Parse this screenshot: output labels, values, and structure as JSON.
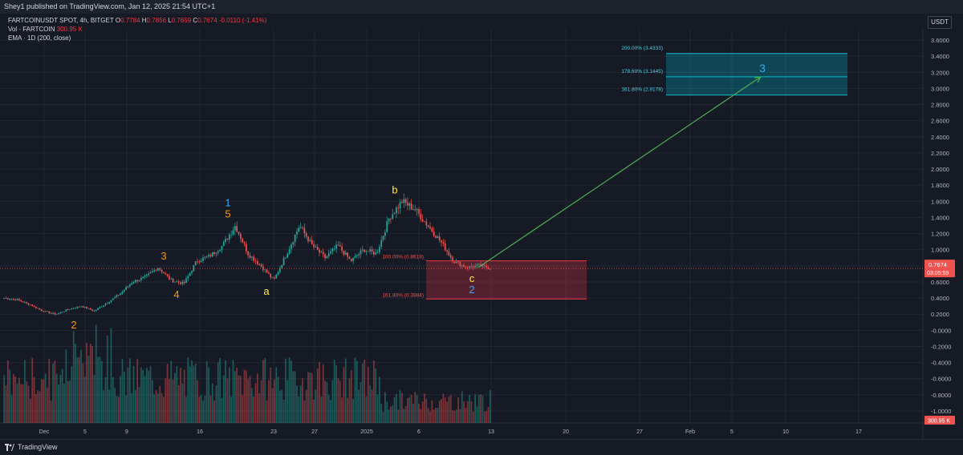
{
  "header": {
    "published": "Shey1 published on TradingView.com, Jan 12, 2025 21:54 UTC+1"
  },
  "legend": {
    "symbol": "FARTCOINUSDT SPOT, 4h, BITGET",
    "o_label": "O",
    "o_value": "0.7784",
    "h_label": "H",
    "h_value": "0.7856",
    "l_label": "L",
    "l_value": "0.7659",
    "c_label": "C",
    "c_value": "0.7674",
    "change": "-0.0110 (-1.41%)",
    "vol_label": "Vol · FARTCOIN",
    "vol_value": "300.95 K",
    "ema_label": "EMA · 1D (200, close)"
  },
  "currency_button": "USDT",
  "price_tag": {
    "price": "0.7674",
    "countdown": "03:05:59"
  },
  "volume_tag": "300.95 K",
  "footer": {
    "brand": "TradingView"
  },
  "colors": {
    "up": "#26a69a",
    "down": "#ef5350",
    "background": "#161a25",
    "target_zone": "#00bcd4",
    "retrace_zone": "#f23645",
    "arrow": "#4caf50",
    "wave_blue": "#42a5f5",
    "wave_orange": "#ff9800",
    "wave_yellow": "#ffeb3b"
  },
  "chart_data": {
    "type": "candlestick",
    "y_axis": {
      "ticks": [
        "3.6000",
        "3.4000",
        "3.2000",
        "3.0000",
        "2.8000",
        "2.6000",
        "2.4000",
        "2.2000",
        "2.0000",
        "1.8000",
        "1.6000",
        "1.4000",
        "1.2000",
        "1.0000",
        "0.8000",
        "0.6000",
        "0.4000",
        "0.2000",
        "-0.0000",
        "-0.2000",
        "-0.4000",
        "-0.6000",
        "-0.8000",
        "-1.0000"
      ],
      "ylim": [
        -1.1,
        3.7
      ]
    },
    "x_axis": {
      "ticks": [
        "Dec",
        "5",
        "9",
        "16",
        "23",
        "27",
        "2025",
        "6",
        "13",
        "20",
        "27",
        "Feb",
        "5",
        "10",
        "17"
      ]
    },
    "price_path": [
      [
        0.4,
        0.38
      ],
      [
        0.38,
        0.32
      ],
      [
        0.32,
        0.24
      ],
      [
        0.24,
        0.2
      ],
      [
        0.2,
        0.26
      ],
      [
        0.26,
        0.3
      ],
      [
        0.3,
        0.24
      ],
      [
        0.24,
        0.34
      ],
      [
        0.34,
        0.45
      ],
      [
        0.45,
        0.6
      ],
      [
        0.6,
        0.66
      ],
      [
        0.66,
        0.78
      ],
      [
        0.78,
        0.62
      ],
      [
        0.62,
        0.58
      ],
      [
        0.58,
        0.86
      ],
      [
        0.86,
        0.92
      ],
      [
        0.92,
        1.05
      ],
      [
        1.05,
        1.3
      ],
      [
        1.3,
        0.95
      ],
      [
        0.95,
        0.8
      ],
      [
        0.8,
        0.62
      ],
      [
        0.62,
        0.95
      ],
      [
        0.95,
        1.3
      ],
      [
        1.3,
        1.05
      ],
      [
        1.05,
        0.9
      ],
      [
        0.9,
        1.05
      ],
      [
        1.05,
        0.86
      ],
      [
        0.86,
        1.0
      ],
      [
        1.0,
        0.95
      ],
      [
        0.95,
        1.4
      ],
      [
        1.4,
        1.6
      ],
      [
        1.6,
        1.5
      ],
      [
        1.5,
        1.3
      ],
      [
        1.3,
        1.1
      ],
      [
        1.1,
        0.86
      ],
      [
        0.86,
        0.78
      ],
      [
        0.78,
        0.8
      ],
      [
        0.8,
        0.77
      ]
    ],
    "wave_labels": [
      {
        "text": "2",
        "price": 0.2,
        "color": "orange",
        "position": "below",
        "index": 5
      },
      {
        "text": "3",
        "price": 0.78,
        "color": "orange",
        "position": "above",
        "index": 12
      },
      {
        "text": "4",
        "price": 0.58,
        "color": "orange",
        "position": "below",
        "index": 13
      },
      {
        "text": "5",
        "price": 1.3,
        "color": "orange",
        "position": "above",
        "index": 17
      },
      {
        "text": "1",
        "price": 1.3,
        "color": "blue",
        "position": "above2",
        "index": 17
      },
      {
        "text": "a",
        "price": 0.62,
        "color": "yellow",
        "position": "below",
        "index": 20
      },
      {
        "text": "b",
        "price": 1.6,
        "color": "yellow",
        "position": "above",
        "index": 30
      },
      {
        "text": "c",
        "price": 0.78,
        "color": "yellow",
        "position": "below",
        "index": 36
      },
      {
        "text": "2",
        "price": 0.78,
        "color": "blue",
        "position": "below2",
        "index": 36
      }
    ],
    "fib_target": {
      "levels": [
        {
          "label": "200.00% (3.4333)",
          "price": 3.4333
        },
        {
          "label": "178.60% (3.1445)",
          "price": 3.1445
        },
        {
          "label": "161.80% (2.9178)",
          "price": 2.9178
        }
      ],
      "wave_label": "3"
    },
    "fib_retrace": {
      "levels": [
        {
          "label": "100.00% (0.8619)",
          "price": 0.8619
        },
        {
          "label": "161.80% (0.3884)",
          "price": 0.3884
        }
      ]
    },
    "arrow": {
      "from_price": 0.78,
      "to_price": 3.1445
    },
    "last_price": 0.7674
  }
}
